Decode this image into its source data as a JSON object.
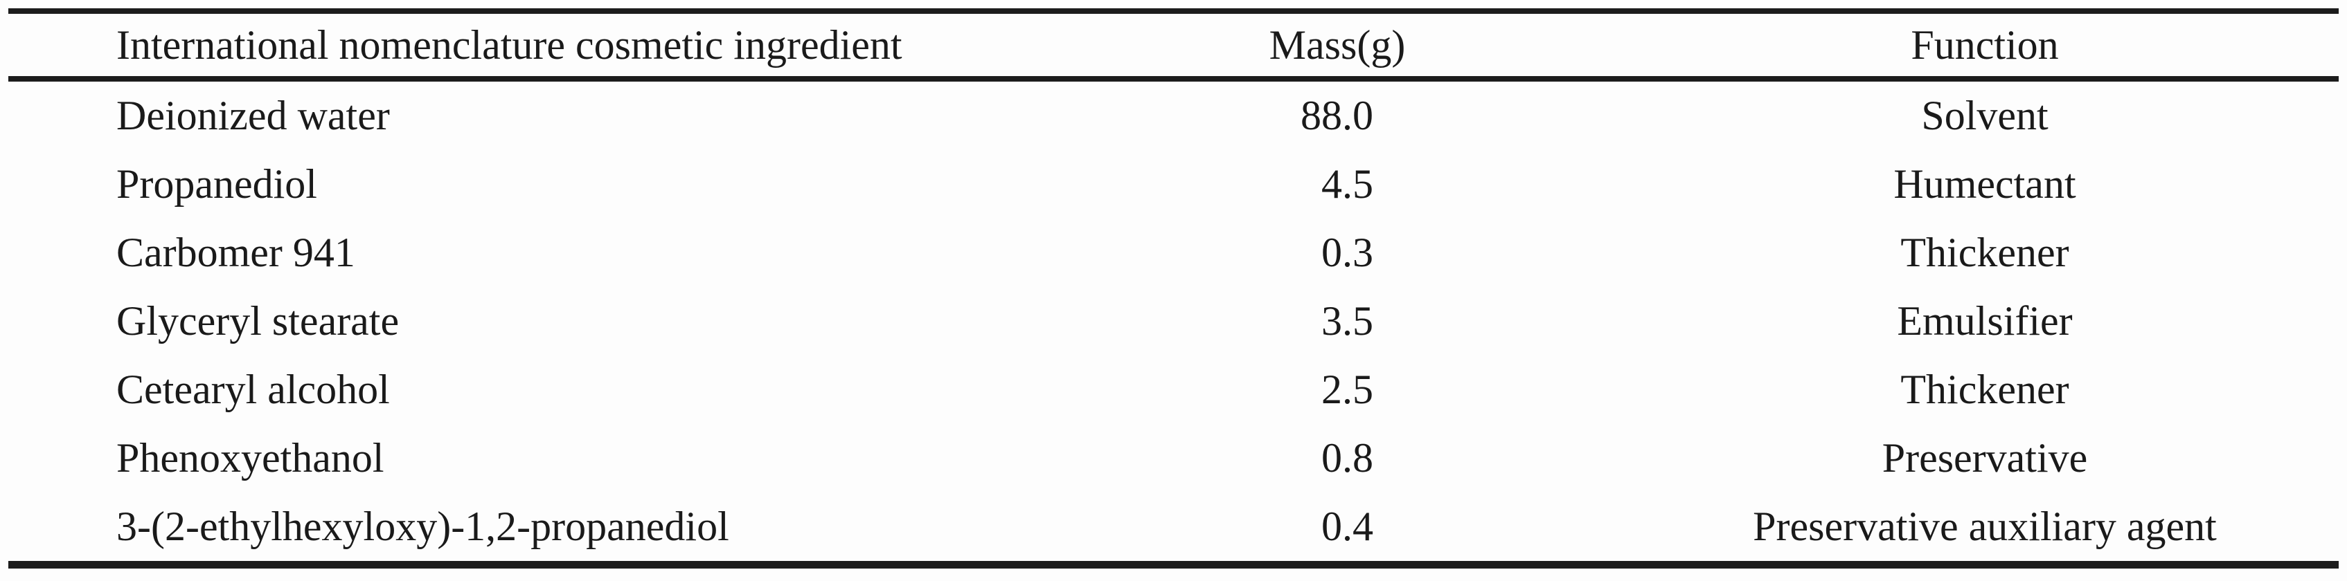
{
  "page": {
    "background_color": "#fdfdfd",
    "text_color": "#1a1a1a",
    "rule_color": "#1c1c1c"
  },
  "table": {
    "headers": {
      "ingredient": "International nomenclature cosmetic ingredient",
      "mass": "Mass(g)",
      "function": "Function"
    },
    "rows": [
      {
        "ingredient": "Deionized water",
        "mass": "88.0",
        "function": "Solvent"
      },
      {
        "ingredient": "Propanediol",
        "mass": "4.5",
        "function": "Humectant"
      },
      {
        "ingredient": "Carbomer 941",
        "mass": "0.3",
        "function": "Thickener"
      },
      {
        "ingredient": "Glyceryl stearate",
        "mass": "3.5",
        "function": "Emulsifier"
      },
      {
        "ingredient": "Cetearyl alcohol",
        "mass": "2.5",
        "function": "Thickener"
      },
      {
        "ingredient": "Phenoxyethanol",
        "mass": "0.8",
        "function": "Preservative"
      },
      {
        "ingredient": "3-(2-ethylhexyloxy)-1,2-propanediol",
        "mass": "0.4",
        "function": "Preservative auxiliary agent"
      }
    ]
  }
}
